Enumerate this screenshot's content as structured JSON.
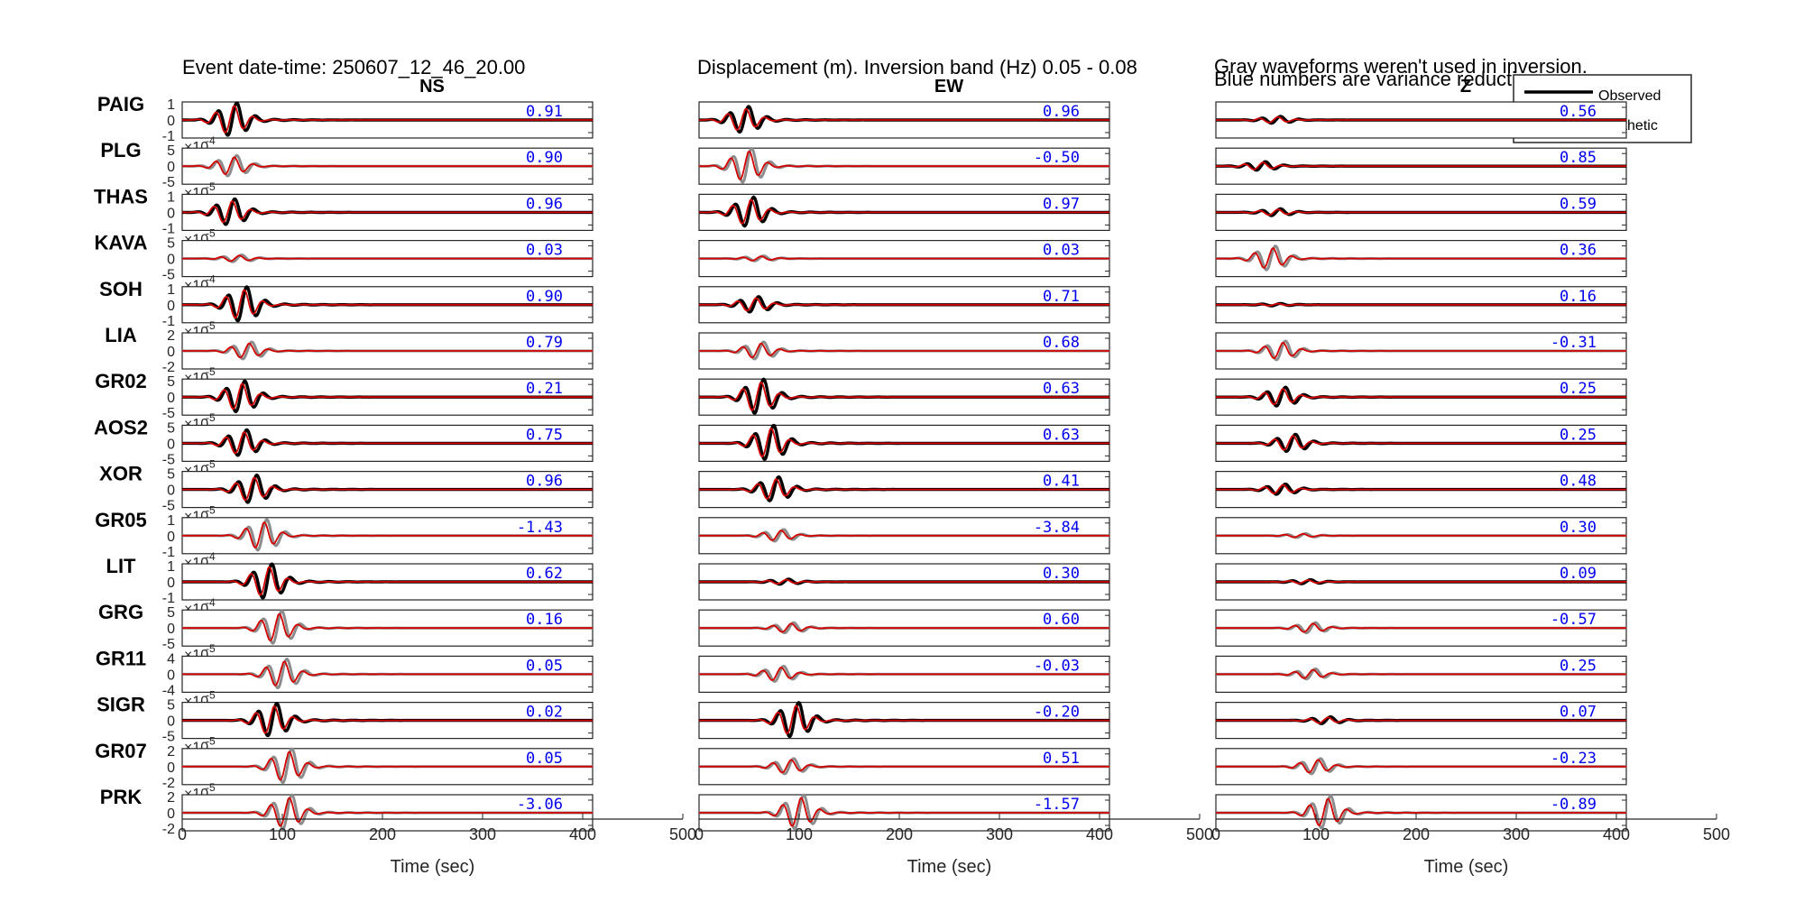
{
  "header": {
    "event_title": "Event date-time: 250607_12_46_20.00",
    "displacement_title": "Displacement (m).  Inversion band (Hz)  0.05 - 0.08",
    "gray_note": "Gray waveforms weren't used in inversion.",
    "blue_note": "Blue numbers are variance reduction."
  },
  "legend": {
    "observed_label": "Observed",
    "synthetic_label": "Synthetic"
  },
  "colors": {
    "observed": "#000000",
    "synthetic": "#d40000",
    "unused": "#8c8c8c",
    "variance": "#0000ee",
    "axis": "#262626"
  },
  "chart_data": {
    "type": "line",
    "title": "Event date-time: 250607_12_46_20.00",
    "xlabel": "Time (sec)",
    "xlim": [
      0,
      500
    ],
    "xticks": [
      0,
      100,
      200,
      300,
      400,
      500
    ],
    "trace_end_sec": 410,
    "components": [
      "NS",
      "EW",
      "Z"
    ],
    "stations": [
      {
        "name": "PAIG",
        "exponent": "-4",
        "yticks": [
          "1",
          "0",
          "-1"
        ],
        "variance_reduction": [
          "0.91",
          "0.96",
          "0.56"
        ],
        "used": [
          true,
          true,
          true
        ],
        "peak_time_sec": [
          50,
          45,
          60
        ],
        "amplitude": [
          0.95,
          0.75,
          0.2
        ]
      },
      {
        "name": "PLG",
        "exponent": "-5",
        "yticks": [
          "5",
          "0",
          "-5"
        ],
        "variance_reduction": [
          "0.90",
          "-0.50",
          "0.85"
        ],
        "used": [
          false,
          false,
          true
        ],
        "peak_time_sec": [
          50,
          48,
          45
        ],
        "amplitude": [
          0.6,
          1.0,
          0.25
        ]
      },
      {
        "name": "THAS",
        "exponent": "-5",
        "yticks": [
          "1",
          "0",
          "-1"
        ],
        "variance_reduction": [
          "0.96",
          "0.97",
          "0.59"
        ],
        "used": [
          true,
          true,
          true
        ],
        "peak_time_sec": [
          48,
          50,
          60
        ],
        "amplitude": [
          0.75,
          0.85,
          0.2
        ]
      },
      {
        "name": "KAVA",
        "exponent": "-4",
        "yticks": [
          "5",
          "0",
          "-5"
        ],
        "variance_reduction": [
          "0.03",
          "0.03",
          "0.36"
        ],
        "used": [
          false,
          false,
          false
        ],
        "peak_time_sec": [
          55,
          60,
          55
        ],
        "amplitude": [
          0.2,
          0.15,
          0.7
        ]
      },
      {
        "name": "SOH",
        "exponent": "-5",
        "yticks": [
          "1",
          "0",
          "-1"
        ],
        "variance_reduction": [
          "0.90",
          "0.71",
          "0.16"
        ],
        "used": [
          true,
          true,
          true
        ],
        "peak_time_sec": [
          60,
          55,
          60
        ],
        "amplitude": [
          1.0,
          0.45,
          0.07
        ]
      },
      {
        "name": "LIA",
        "exponent": "-5",
        "yticks": [
          "2",
          "0",
          "-2"
        ],
        "variance_reduction": [
          "0.79",
          "0.68",
          "-0.31"
        ],
        "used": [
          false,
          false,
          false
        ],
        "peak_time_sec": [
          65,
          60,
          65
        ],
        "amplitude": [
          0.5,
          0.5,
          0.55
        ]
      },
      {
        "name": "GR02",
        "exponent": "-5",
        "yticks": [
          "5",
          "0",
          "-5"
        ],
        "variance_reduction": [
          "0.21",
          "0.63",
          "0.25"
        ],
        "used": [
          true,
          true,
          true
        ],
        "peak_time_sec": [
          58,
          60,
          65
        ],
        "amplitude": [
          0.9,
          1.0,
          0.55
        ]
      },
      {
        "name": "AOS2",
        "exponent": "-5",
        "yticks": [
          "5",
          "0",
          "-5"
        ],
        "variance_reduction": [
          "0.75",
          "0.63",
          "0.25"
        ],
        "used": [
          true,
          true,
          true
        ],
        "peak_time_sec": [
          60,
          70,
          75
        ],
        "amplitude": [
          0.75,
          1.0,
          0.5
        ]
      },
      {
        "name": "XOR",
        "exponent": "-5",
        "yticks": [
          "5",
          "0",
          "-5"
        ],
        "variance_reduction": [
          "0.96",
          "0.41",
          "0.48"
        ],
        "used": [
          true,
          true,
          true
        ],
        "peak_time_sec": [
          70,
          75,
          65
        ],
        "amplitude": [
          0.8,
          0.7,
          0.3
        ]
      },
      {
        "name": "GR05",
        "exponent": "-4",
        "yticks": [
          "1",
          "0",
          "-1"
        ],
        "variance_reduction": [
          "-1.43",
          "-3.84",
          "0.30"
        ],
        "used": [
          false,
          false,
          false
        ],
        "peak_time_sec": [
          80,
          80,
          85
        ],
        "amplitude": [
          0.9,
          0.35,
          0.12
        ]
      },
      {
        "name": "LIT",
        "exponent": "-4",
        "yticks": [
          "1",
          "0",
          "-1"
        ],
        "variance_reduction": [
          "0.62",
          "0.30",
          "0.09"
        ],
        "used": [
          true,
          true,
          true
        ],
        "peak_time_sec": [
          85,
          85,
          90
        ],
        "amplitude": [
          1.0,
          0.15,
          0.12
        ]
      },
      {
        "name": "GRG",
        "exponent": "-5",
        "yticks": [
          "5",
          "0",
          "-5"
        ],
        "variance_reduction": [
          "0.16",
          "0.60",
          "-0.57"
        ],
        "used": [
          false,
          false,
          false
        ],
        "peak_time_sec": [
          95,
          90,
          95
        ],
        "amplitude": [
          0.95,
          0.3,
          0.3
        ]
      },
      {
        "name": "GR11",
        "exponent": "-5",
        "yticks": [
          "4",
          "0",
          "-4"
        ],
        "variance_reduction": [
          "0.05",
          "-0.03",
          "0.25"
        ],
        "used": [
          false,
          false,
          false
        ],
        "peak_time_sec": [
          100,
          80,
          95
        ],
        "amplitude": [
          0.85,
          0.45,
          0.3
        ]
      },
      {
        "name": "SIGR",
        "exponent": "-5",
        "yticks": [
          "5",
          "0",
          "-5"
        ],
        "variance_reduction": [
          "0.02",
          "-0.20",
          "0.07"
        ],
        "used": [
          true,
          true,
          true
        ],
        "peak_time_sec": [
          90,
          95,
          110
        ],
        "amplitude": [
          0.95,
          1.0,
          0.2
        ]
      },
      {
        "name": "GR07",
        "exponent": "-5",
        "yticks": [
          "2",
          "0",
          "-2"
        ],
        "variance_reduction": [
          "0.05",
          "0.51",
          "-0.23"
        ],
        "used": [
          false,
          false,
          false
        ],
        "peak_time_sec": [
          105,
          90,
          100
        ],
        "amplitude": [
          1.0,
          0.45,
          0.45
        ]
      },
      {
        "name": "PRK",
        "exponent": "",
        "yticks": [
          "2",
          "0",
          "-2"
        ],
        "variance_reduction": [
          "-3.06",
          "-1.57",
          "-0.89"
        ],
        "used": [
          false,
          false,
          false
        ],
        "peak_time_sec": [
          105,
          100,
          110
        ],
        "amplitude": [
          1.0,
          1.0,
          0.95
        ]
      }
    ]
  }
}
